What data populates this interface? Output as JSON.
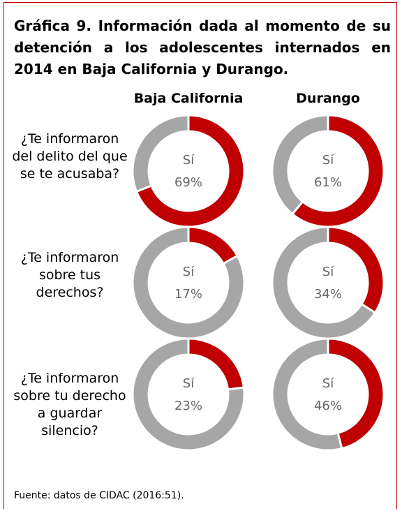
{
  "chart_data": {
    "type": "donut",
    "title": "Gráfica 9. Información dada al momento de su detención a los adolescentes internados en 2014 en Baja California y Durango.",
    "categories": [
      "¿Te informaron del delito del que se te acusaba?",
      "¿Te informaron sobre tus derechos?",
      "¿Te informaron sobre tu derecho a guardar silencio?"
    ],
    "center_label": "Sí",
    "series": [
      {
        "name": "Baja California",
        "color": "#c00000",
        "values": [
          69,
          17,
          23
        ],
        "value_labels": [
          "69%",
          "17%",
          "23%"
        ]
      },
      {
        "name": "Durango",
        "color": "#c00000",
        "values": [
          61,
          34,
          46
        ],
        "value_labels": [
          "61%",
          "34%",
          "46%"
        ]
      }
    ],
    "remainder_color": "#a6a6a6",
    "source": "Fuente: datos de CIDAC (2016:51)."
  }
}
